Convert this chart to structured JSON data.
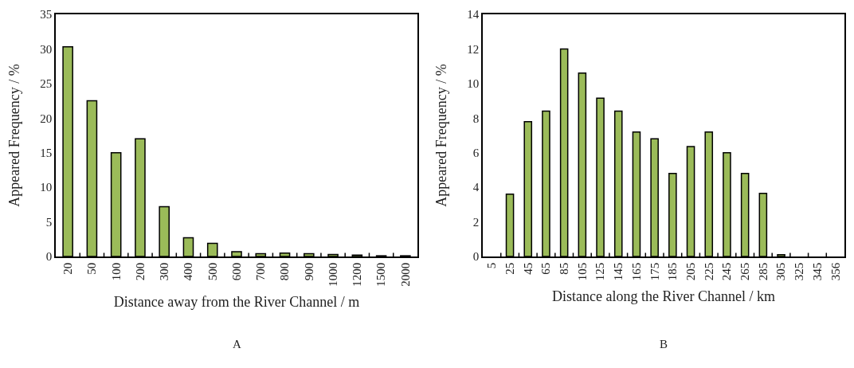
{
  "chart_data": [
    {
      "type": "bar",
      "xlabel": "Distance away from the River Channel / m",
      "ylabel": "Appeared Frequency / %",
      "categories": [
        "20",
        "50",
        "100",
        "200",
        "300",
        "400",
        "500",
        "600",
        "700",
        "800",
        "900",
        "1000",
        "1200",
        "1500",
        "2000"
      ],
      "values": [
        30.3,
        22.5,
        15,
        17,
        7.2,
        2.7,
        1.9,
        0.7,
        0.4,
        0.5,
        0.4,
        0.3,
        0.2,
        0.1,
        0.1
      ],
      "color": "#9bbb59",
      "ylim": [
        0,
        35
      ],
      "yticks": [
        0,
        5,
        10,
        15,
        20,
        25,
        30,
        35
      ],
      "grid": false,
      "annotations": [
        "A"
      ]
    },
    {
      "type": "bar",
      "xlabel": "Distance along the River Channel / km",
      "ylabel": "Appeared Frequency / %",
      "categories": [
        "5",
        "25",
        "45",
        "65",
        "85",
        "105",
        "125",
        "145",
        "165",
        "175",
        "185",
        "205",
        "225",
        "245",
        "265",
        "285",
        "305",
        "325",
        "345",
        "356"
      ],
      "values": [
        0,
        3.6,
        7.8,
        8.4,
        12,
        10.6,
        9.15,
        8.4,
        7.2,
        6.8,
        4.8,
        6.35,
        7.2,
        6.0,
        4.8,
        3.65,
        0.1,
        0,
        0,
        0
      ],
      "color": "#9bbb59",
      "ylim": [
        0,
        14
      ],
      "yticks": [
        0,
        2,
        4,
        6,
        8,
        10,
        12,
        14
      ],
      "grid": false,
      "annotations": [
        "B"
      ]
    }
  ]
}
